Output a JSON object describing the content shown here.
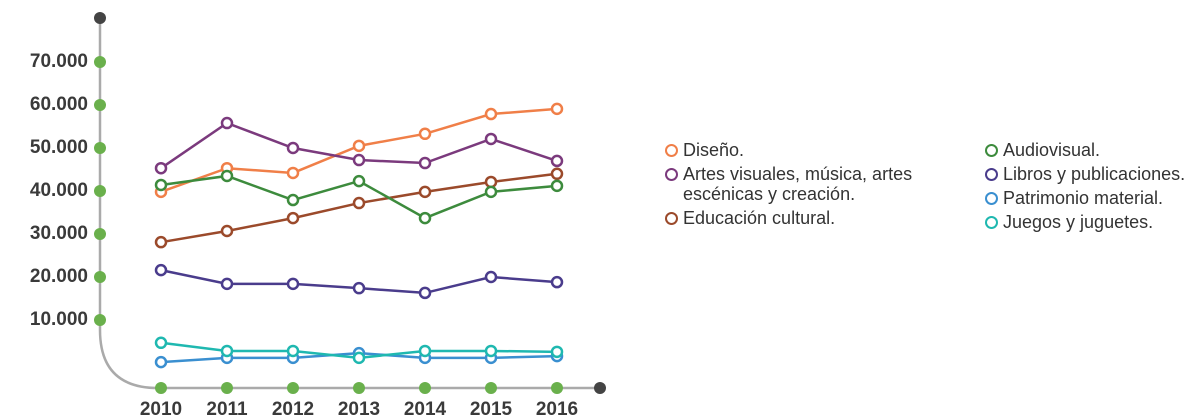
{
  "chart_data": {
    "type": "line",
    "categories": [
      "2010",
      "2011",
      "2012",
      "2013",
      "2014",
      "2015",
      "2016"
    ],
    "series": [
      {
        "name": "Diseño.",
        "color": "#f07f48",
        "values": [
          39800,
          45300,
          44200,
          50500,
          53300,
          57900,
          59100
        ]
      },
      {
        "name": "Artes visuales, música, artes escénicas y creación.",
        "color": "#7b3a7d",
        "values": [
          45300,
          55800,
          50000,
          47200,
          46500,
          52100,
          47000
        ]
      },
      {
        "name": "Educación cultural.",
        "color": "#9b4a2b",
        "values": [
          28100,
          30700,
          33700,
          37200,
          39800,
          42100,
          44000
        ]
      },
      {
        "name": "Audiovisual.",
        "color": "#3d8b3d",
        "values": [
          41400,
          43500,
          37900,
          42300,
          33700,
          39800,
          41200
        ]
      },
      {
        "name": "Libros y publicaciones.",
        "color": "#4a3c8c",
        "values": [
          21600,
          18400,
          18400,
          17400,
          16300,
          20000,
          18800
        ]
      },
      {
        "name": "Patrimonio material.",
        "color": "#3a8fd0",
        "values": [
          200,
          1200,
          1200,
          2300,
          1200,
          1200,
          1600
        ]
      },
      {
        "name": "Juegos y juguetes.",
        "color": "#1fb8b0",
        "values": [
          4700,
          2800,
          2800,
          1200,
          2800,
          2800,
          2600
        ]
      }
    ],
    "ylim": [
      0,
      70000
    ],
    "yticks": [
      {
        "value": 10000,
        "label": "10.000"
      },
      {
        "value": 20000,
        "label": "20.000"
      },
      {
        "value": 30000,
        "label": "30.000"
      },
      {
        "value": 40000,
        "label": "40.000"
      },
      {
        "value": 50000,
        "label": "50.000"
      },
      {
        "value": 60000,
        "label": "60.000"
      },
      {
        "value": 70000,
        "label": "70.000"
      }
    ]
  }
}
